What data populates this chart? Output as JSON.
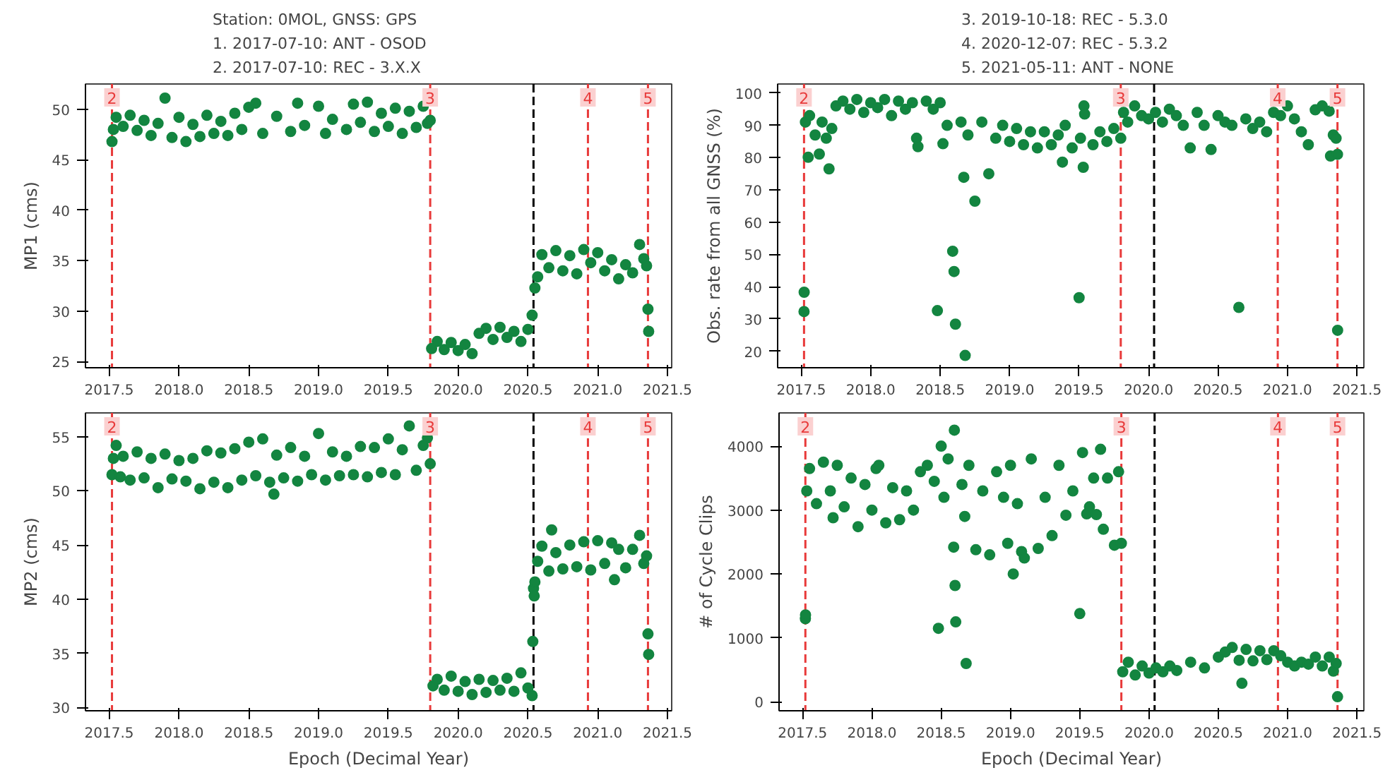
{
  "chart_data": [
    {
      "type": "scatter",
      "ylabel": "MP1 (cms)",
      "annotations": [
        "Station: 0MOL,          GNSS: GPS",
        "1. 2017-07-10: ANT - OSOD",
        "2. 2017-07-10: REC - 3.X.X",
        {
          "text": "2",
          "x": 2017.52,
          "y": 52.5
        },
        {
          "text": "3",
          "x": 2019.8,
          "y": 52.5
        },
        {
          "text": "4",
          "x": 2020.93,
          "y": 52.5
        },
        {
          "text": "5",
          "x": 2021.36,
          "y": 52.5
        }
      ],
      "xlim": [
        2017.33,
        2021.53
      ],
      "ylim": [
        24.4,
        52.5
      ],
      "xticks": [
        2017.5,
        {
          "value": 2018,
          "label": "2018.0"
        },
        2018.5,
        {
          "value": 2019,
          "label": "2019.0"
        },
        2019.5,
        {
          "value": 2020,
          "label": "2020.0"
        },
        2020.5,
        {
          "value": 2021,
          "label": "2021.0"
        },
        2021.5
      ],
      "yticks": [
        25,
        30,
        35,
        40,
        45,
        50
      ],
      "marker": "circle",
      "grid": false,
      "ref_lines": [
        {
          "axis": "x",
          "value": 2017.52,
          "color": "#e83a3a",
          "line_style": "dashed"
        },
        {
          "axis": "x",
          "value": 2019.8,
          "color": "#e83a3a",
          "line_style": "dashed"
        },
        {
          "axis": "x",
          "value": 2020.93,
          "color": "#e83a3a",
          "line_style": "dashed"
        },
        {
          "axis": "x",
          "value": 2021.36,
          "color": "#e83a3a",
          "line_style": "dashed"
        },
        {
          "axis": "x",
          "value": 2020.54,
          "color": "#000000",
          "line_style": "dashed"
        }
      ],
      "series": [
        {
          "color": "#138540",
          "x": [
            2017.52,
            2017.53,
            2017.55,
            2017.6,
            2017.65,
            2017.7,
            2017.75,
            2017.8,
            2017.85,
            2017.9,
            2017.95,
            2018.0,
            2018.05,
            2018.1,
            2018.15,
            2018.2,
            2018.25,
            2018.3,
            2018.35,
            2018.4,
            2018.45,
            2018.5,
            2018.55,
            2018.6,
            2018.7,
            2018.8,
            2018.85,
            2018.9,
            2019.0,
            2019.05,
            2019.1,
            2019.2,
            2019.25,
            2019.3,
            2019.35,
            2019.4,
            2019.45,
            2019.5,
            2019.55,
            2019.6,
            2019.65,
            2019.7,
            2019.75,
            2019.78,
            2019.8,
            2019.81,
            2019.85,
            2019.9,
            2019.95,
            2020.0,
            2020.05,
            2020.1,
            2020.15,
            2020.2,
            2020.25,
            2020.3,
            2020.35,
            2020.4,
            2020.45,
            2020.5,
            2020.53,
            2020.55,
            2020.57,
            2020.6,
            2020.65,
            2020.7,
            2020.75,
            2020.8,
            2020.85,
            2020.9,
            2020.95,
            2021.0,
            2021.05,
            2021.1,
            2021.15,
            2021.2,
            2021.25,
            2021.3,
            2021.33,
            2021.35,
            2021.36,
            2021.365
          ],
          "values": [
            46.8,
            48.0,
            49.2,
            48.3,
            49.4,
            47.9,
            48.9,
            47.4,
            48.6,
            51.1,
            47.2,
            49.2,
            46.8,
            48.5,
            47.3,
            49.4,
            47.6,
            48.8,
            47.4,
            49.6,
            48.0,
            50.2,
            50.6,
            47.6,
            49.3,
            47.8,
            50.6,
            48.4,
            50.3,
            47.6,
            49.0,
            48.0,
            50.5,
            48.7,
            50.7,
            47.8,
            49.6,
            48.3,
            50.1,
            47.6,
            49.8,
            48.2,
            50.3,
            48.6,
            48.9,
            26.3,
            27.0,
            26.2,
            26.9,
            26.1,
            26.7,
            25.8,
            27.8,
            28.3,
            27.2,
            28.4,
            27.4,
            28.0,
            27.0,
            28.2,
            29.6,
            32.3,
            33.4,
            35.6,
            34.3,
            36.0,
            34.0,
            35.5,
            33.7,
            36.1,
            34.8,
            35.8,
            34.0,
            35.1,
            33.2,
            34.6,
            33.8,
            36.6,
            35.2,
            34.5,
            30.2,
            28.0
          ]
        }
      ]
    },
    {
      "type": "scatter",
      "ylabel": "Obs. rate from all GNSS (%)",
      "annotations": [
        "3. 2019-10-18: REC - 5.3.0",
        "4. 2020-12-07: REC - 5.3.2",
        "5. 2021-05-11: ANT - NONE",
        {
          "text": "2",
          "x": 2017.52,
          "y": 102.8
        },
        {
          "text": "3",
          "x": 2019.8,
          "y": 102.8
        },
        {
          "text": "4",
          "x": 2020.93,
          "y": 102.8
        },
        {
          "text": "5",
          "x": 2021.36,
          "y": 102.8
        }
      ],
      "xlim": [
        2017.33,
        2021.55
      ],
      "ylim": [
        14.9,
        102.8
      ],
      "xticks": [
        2017.5,
        {
          "value": 2018,
          "label": "2018.0"
        },
        2018.5,
        {
          "value": 2019,
          "label": "2019.0"
        },
        2019.5,
        {
          "value": 2020,
          "label": "2020.0"
        },
        2020.5,
        {
          "value": 2021,
          "label": "2021.0"
        },
        2021.5
      ],
      "yticks": [
        20,
        30,
        40,
        50,
        60,
        70,
        80,
        90,
        100
      ],
      "marker": "circle",
      "grid": false,
      "ref_lines": [
        {
          "axis": "x",
          "value": 2017.52,
          "color": "#e83a3a",
          "line_style": "dashed"
        },
        {
          "axis": "x",
          "value": 2019.8,
          "color": "#e83a3a",
          "line_style": "dashed"
        },
        {
          "axis": "x",
          "value": 2020.93,
          "color": "#e83a3a",
          "line_style": "dashed"
        },
        {
          "axis": "x",
          "value": 2021.36,
          "color": "#e83a3a",
          "line_style": "dashed"
        },
        {
          "axis": "x",
          "value": 2020.04,
          "color": "#000000",
          "line_style": "dashed"
        }
      ],
      "series": [
        {
          "color": "#138540",
          "x": [
            2017.52,
            2017.521,
            2017.53,
            2017.55,
            2017.56,
            2017.6,
            2017.63,
            2017.65,
            2017.68,
            2017.7,
            2017.72,
            2017.75,
            2017.8,
            2017.85,
            2017.9,
            2017.95,
            2018.0,
            2018.05,
            2018.1,
            2018.15,
            2018.2,
            2018.25,
            2018.3,
            2018.33,
            2018.34,
            2018.4,
            2018.45,
            2018.48,
            2018.5,
            2018.52,
            2018.55,
            2018.59,
            2018.6,
            2018.61,
            2018.65,
            2018.67,
            2018.68,
            2018.7,
            2018.75,
            2018.8,
            2018.85,
            2018.9,
            2018.95,
            2019.0,
            2019.05,
            2019.1,
            2019.15,
            2019.2,
            2019.25,
            2019.3,
            2019.35,
            2019.38,
            2019.4,
            2019.45,
            2019.5,
            2019.51,
            2019.53,
            2019.535,
            2019.54,
            2019.6,
            2019.65,
            2019.7,
            2019.75,
            2019.8,
            2019.82,
            2019.85,
            2019.9,
            2019.95,
            2020.0,
            2020.05,
            2020.1,
            2020.15,
            2020.2,
            2020.25,
            2020.3,
            2020.35,
            2020.4,
            2020.45,
            2020.5,
            2020.55,
            2020.6,
            2020.65,
            2020.7,
            2020.75,
            2020.8,
            2020.85,
            2020.9,
            2020.95,
            2021.0,
            2021.05,
            2021.1,
            2021.15,
            2021.2,
            2021.25,
            2021.3,
            2021.31,
            2021.33,
            2021.35,
            2021.36,
            2021.361
          ],
          "values": [
            32.3,
            38.3,
            91,
            80.1,
            93,
            87,
            81.1,
            91,
            86,
            76.5,
            89,
            96,
            97.5,
            95,
            98,
            94,
            97,
            95.5,
            98,
            93,
            97.5,
            95,
            97,
            86,
            83.4,
            97.5,
            95,
            32.6,
            97,
            84.3,
            90,
            51.0,
            44.7,
            28.4,
            91,
            73.9,
            18.7,
            87,
            66.5,
            91,
            75,
            86,
            90,
            85,
            89,
            84,
            88,
            83,
            88,
            84,
            87,
            78.6,
            90,
            83,
            36.6,
            86,
            77,
            96,
            93.5,
            84,
            88,
            85,
            89,
            86,
            94,
            91,
            96,
            93,
            92,
            94,
            91,
            95,
            93,
            90,
            83,
            94,
            90,
            82.5,
            93,
            91,
            90,
            33.6,
            92,
            89,
            91,
            88,
            94,
            93,
            96,
            92,
            88,
            84,
            94.8,
            96,
            94.4,
            80.5,
            87,
            86,
            81,
            26.5
          ]
        }
      ]
    },
    {
      "type": "scatter",
      "ylabel": "MP2 (cms)",
      "xlabel": "Epoch (Decimal Year)",
      "annotations": [
        {
          "text": "2",
          "x": 2017.52,
          "y": 57.2
        },
        {
          "text": "3",
          "x": 2019.8,
          "y": 57.2
        },
        {
          "text": "4",
          "x": 2020.93,
          "y": 57.2
        },
        {
          "text": "5",
          "x": 2021.36,
          "y": 57.2
        }
      ],
      "xlim": [
        2017.33,
        2021.53
      ],
      "ylim": [
        29.7,
        57.2
      ],
      "xticks": [
        2017.5,
        {
          "value": 2018,
          "label": "2018.0"
        },
        2018.5,
        {
          "value": 2019,
          "label": "2019.0"
        },
        2019.5,
        {
          "value": 2020,
          "label": "2020.0"
        },
        2020.5,
        {
          "value": 2021,
          "label": "2021.0"
        },
        2021.5
      ],
      "yticks": [
        30,
        35,
        40,
        45,
        50,
        55
      ],
      "marker": "circle",
      "grid": false,
      "ref_lines": [
        {
          "axis": "x",
          "value": 2017.52,
          "color": "#e83a3a",
          "line_style": "dashed"
        },
        {
          "axis": "x",
          "value": 2019.8,
          "color": "#e83a3a",
          "line_style": "dashed"
        },
        {
          "axis": "x",
          "value": 2020.93,
          "color": "#e83a3a",
          "line_style": "dashed"
        },
        {
          "axis": "x",
          "value": 2021.36,
          "color": "#e83a3a",
          "line_style": "dashed"
        },
        {
          "axis": "x",
          "value": 2020.54,
          "color": "#000000",
          "line_style": "dashed"
        }
      ],
      "series": [
        {
          "color": "#138540",
          "x": [
            2017.52,
            2017.53,
            2017.55,
            2017.58,
            2017.6,
            2017.65,
            2017.7,
            2017.75,
            2017.8,
            2017.85,
            2017.9,
            2017.95,
            2018.0,
            2018.05,
            2018.1,
            2018.15,
            2018.2,
            2018.25,
            2018.3,
            2018.35,
            2018.4,
            2018.45,
            2018.5,
            2018.55,
            2018.6,
            2018.65,
            2018.68,
            2018.7,
            2018.75,
            2018.8,
            2018.85,
            2018.9,
            2018.95,
            2019.0,
            2019.05,
            2019.1,
            2019.15,
            2019.2,
            2019.25,
            2019.3,
            2019.35,
            2019.4,
            2019.45,
            2019.5,
            2019.55,
            2019.6,
            2019.65,
            2019.7,
            2019.75,
            2019.78,
            2019.8,
            2019.82,
            2019.85,
            2019.9,
            2019.95,
            2020.0,
            2020.05,
            2020.1,
            2020.15,
            2020.2,
            2020.25,
            2020.3,
            2020.35,
            2020.4,
            2020.45,
            2020.5,
            2020.53,
            2020.535,
            2020.54,
            2020.545,
            2020.55,
            2020.57,
            2020.6,
            2020.65,
            2020.67,
            2020.7,
            2020.75,
            2020.8,
            2020.85,
            2020.9,
            2020.95,
            2021.0,
            2021.05,
            2021.1,
            2021.12,
            2021.15,
            2021.2,
            2021.25,
            2021.3,
            2021.33,
            2021.35,
            2021.36,
            2021.365
          ],
          "values": [
            51.5,
            53.0,
            54.2,
            51.3,
            53.2,
            51.0,
            53.6,
            51.2,
            53.0,
            50.3,
            53.4,
            51.1,
            52.8,
            50.9,
            53.0,
            50.2,
            53.7,
            50.8,
            53.5,
            50.3,
            53.9,
            51.0,
            54.5,
            51.4,
            54.8,
            50.8,
            49.7,
            53.3,
            51.2,
            54.0,
            50.9,
            53.2,
            51.5,
            55.3,
            51.0,
            53.6,
            51.4,
            53.2,
            51.5,
            54.1,
            51.3,
            54.0,
            51.7,
            54.8,
            51.5,
            53.8,
            56.0,
            51.9,
            54.2,
            54.9,
            52.5,
            32.0,
            32.6,
            31.6,
            32.9,
            31.5,
            32.4,
            31.2,
            32.6,
            31.4,
            32.5,
            31.6,
            32.7,
            31.5,
            33.2,
            31.8,
            31.1,
            36.1,
            41.0,
            40.3,
            41.6,
            43.5,
            44.9,
            42.6,
            46.4,
            44.3,
            42.8,
            45.0,
            43.0,
            45.3,
            42.7,
            45.4,
            43.3,
            45.2,
            41.8,
            44.6,
            42.9,
            44.6,
            45.9,
            43.3,
            44.0,
            36.8,
            34.9
          ]
        }
      ]
    },
    {
      "type": "scatter",
      "ylabel": "# of Cycle Clips",
      "xlabel": "Epoch (Decimal Year)",
      "annotations": [
        {
          "text": "2",
          "x": 2017.52,
          "y": 4520
        },
        {
          "text": "3",
          "x": 2019.8,
          "y": 4520
        },
        {
          "text": "4",
          "x": 2020.93,
          "y": 4520
        },
        {
          "text": "5",
          "x": 2021.36,
          "y": 4520
        }
      ],
      "xlim": [
        2017.33,
        2021.55
      ],
      "ylim": [
        -140,
        4520
      ],
      "xticks": [
        2017.5,
        {
          "value": 2018,
          "label": "2018.0"
        },
        2018.5,
        {
          "value": 2019,
          "label": "2019.0"
        },
        2019.5,
        {
          "value": 2020,
          "label": "2020.0"
        },
        2020.5,
        {
          "value": 2021,
          "label": "2021.0"
        },
        2021.5
      ],
      "yticks": [
        0,
        1000,
        2000,
        3000,
        4000
      ],
      "marker": "circle",
      "grid": false,
      "ref_lines": [
        {
          "axis": "x",
          "value": 2017.52,
          "color": "#e83a3a",
          "line_style": "dashed"
        },
        {
          "axis": "x",
          "value": 2019.8,
          "color": "#e83a3a",
          "line_style": "dashed"
        },
        {
          "axis": "x",
          "value": 2020.93,
          "color": "#e83a3a",
          "line_style": "dashed"
        },
        {
          "axis": "x",
          "value": 2021.36,
          "color": "#e83a3a",
          "line_style": "dashed"
        },
        {
          "axis": "x",
          "value": 2020.04,
          "color": "#000000",
          "line_style": "dashed"
        }
      ],
      "series": [
        {
          "color": "#138540",
          "x": [
            2017.52,
            2017.521,
            2017.53,
            2017.55,
            2017.6,
            2017.65,
            2017.7,
            2017.72,
            2017.75,
            2017.8,
            2017.85,
            2017.9,
            2017.95,
            2018.0,
            2018.03,
            2018.05,
            2018.1,
            2018.15,
            2018.2,
            2018.25,
            2018.3,
            2018.35,
            2018.4,
            2018.45,
            2018.48,
            2018.5,
            2018.52,
            2018.55,
            2018.59,
            2018.595,
            2018.6,
            2018.605,
            2018.65,
            2018.67,
            2018.68,
            2018.7,
            2018.75,
            2018.8,
            2018.85,
            2018.9,
            2018.95,
            2018.98,
            2019.0,
            2019.02,
            2019.05,
            2019.08,
            2019.1,
            2019.15,
            2019.2,
            2019.25,
            2019.3,
            2019.35,
            2019.4,
            2019.45,
            2019.5,
            2019.52,
            2019.55,
            2019.57,
            2019.6,
            2019.62,
            2019.65,
            2019.67,
            2019.7,
            2019.75,
            2019.78,
            2019.8,
            2019.81,
            2019.85,
            2019.9,
            2019.95,
            2020.0,
            2020.05,
            2020.1,
            2020.15,
            2020.2,
            2020.3,
            2020.4,
            2020.5,
            2020.55,
            2020.6,
            2020.65,
            2020.67,
            2020.7,
            2020.75,
            2020.8,
            2020.85,
            2020.9,
            2020.95,
            2021.0,
            2021.05,
            2021.1,
            2021.15,
            2021.2,
            2021.25,
            2021.3,
            2021.33,
            2021.35,
            2021.36
          ],
          "values": [
            1300,
            1360,
            3300,
            3650,
            3100,
            3750,
            3300,
            2880,
            3700,
            3050,
            3500,
            2740,
            3400,
            3000,
            3650,
            3700,
            2800,
            3350,
            2850,
            3300,
            3000,
            3600,
            3700,
            3450,
            1150,
            4000,
            3200,
            3800,
            2420,
            4250,
            1820,
            1250,
            3400,
            2900,
            600,
            3700,
            2380,
            3300,
            2300,
            3600,
            3200,
            2480,
            3700,
            2000,
            3100,
            2350,
            2250,
            3800,
            2400,
            3200,
            2600,
            3700,
            2920,
            3300,
            1380,
            3900,
            2940,
            3050,
            3500,
            2930,
            3950,
            2700,
            3500,
            2450,
            3600,
            2480,
            470,
            620,
            420,
            560,
            450,
            530,
            470,
            560,
            490,
            620,
            530,
            700,
            780,
            850,
            650,
            290,
            820,
            640,
            800,
            660,
            800,
            720,
            620,
            560,
            620,
            590,
            700,
            560,
            700,
            480,
            600,
            80
          ]
        }
      ]
    }
  ]
}
